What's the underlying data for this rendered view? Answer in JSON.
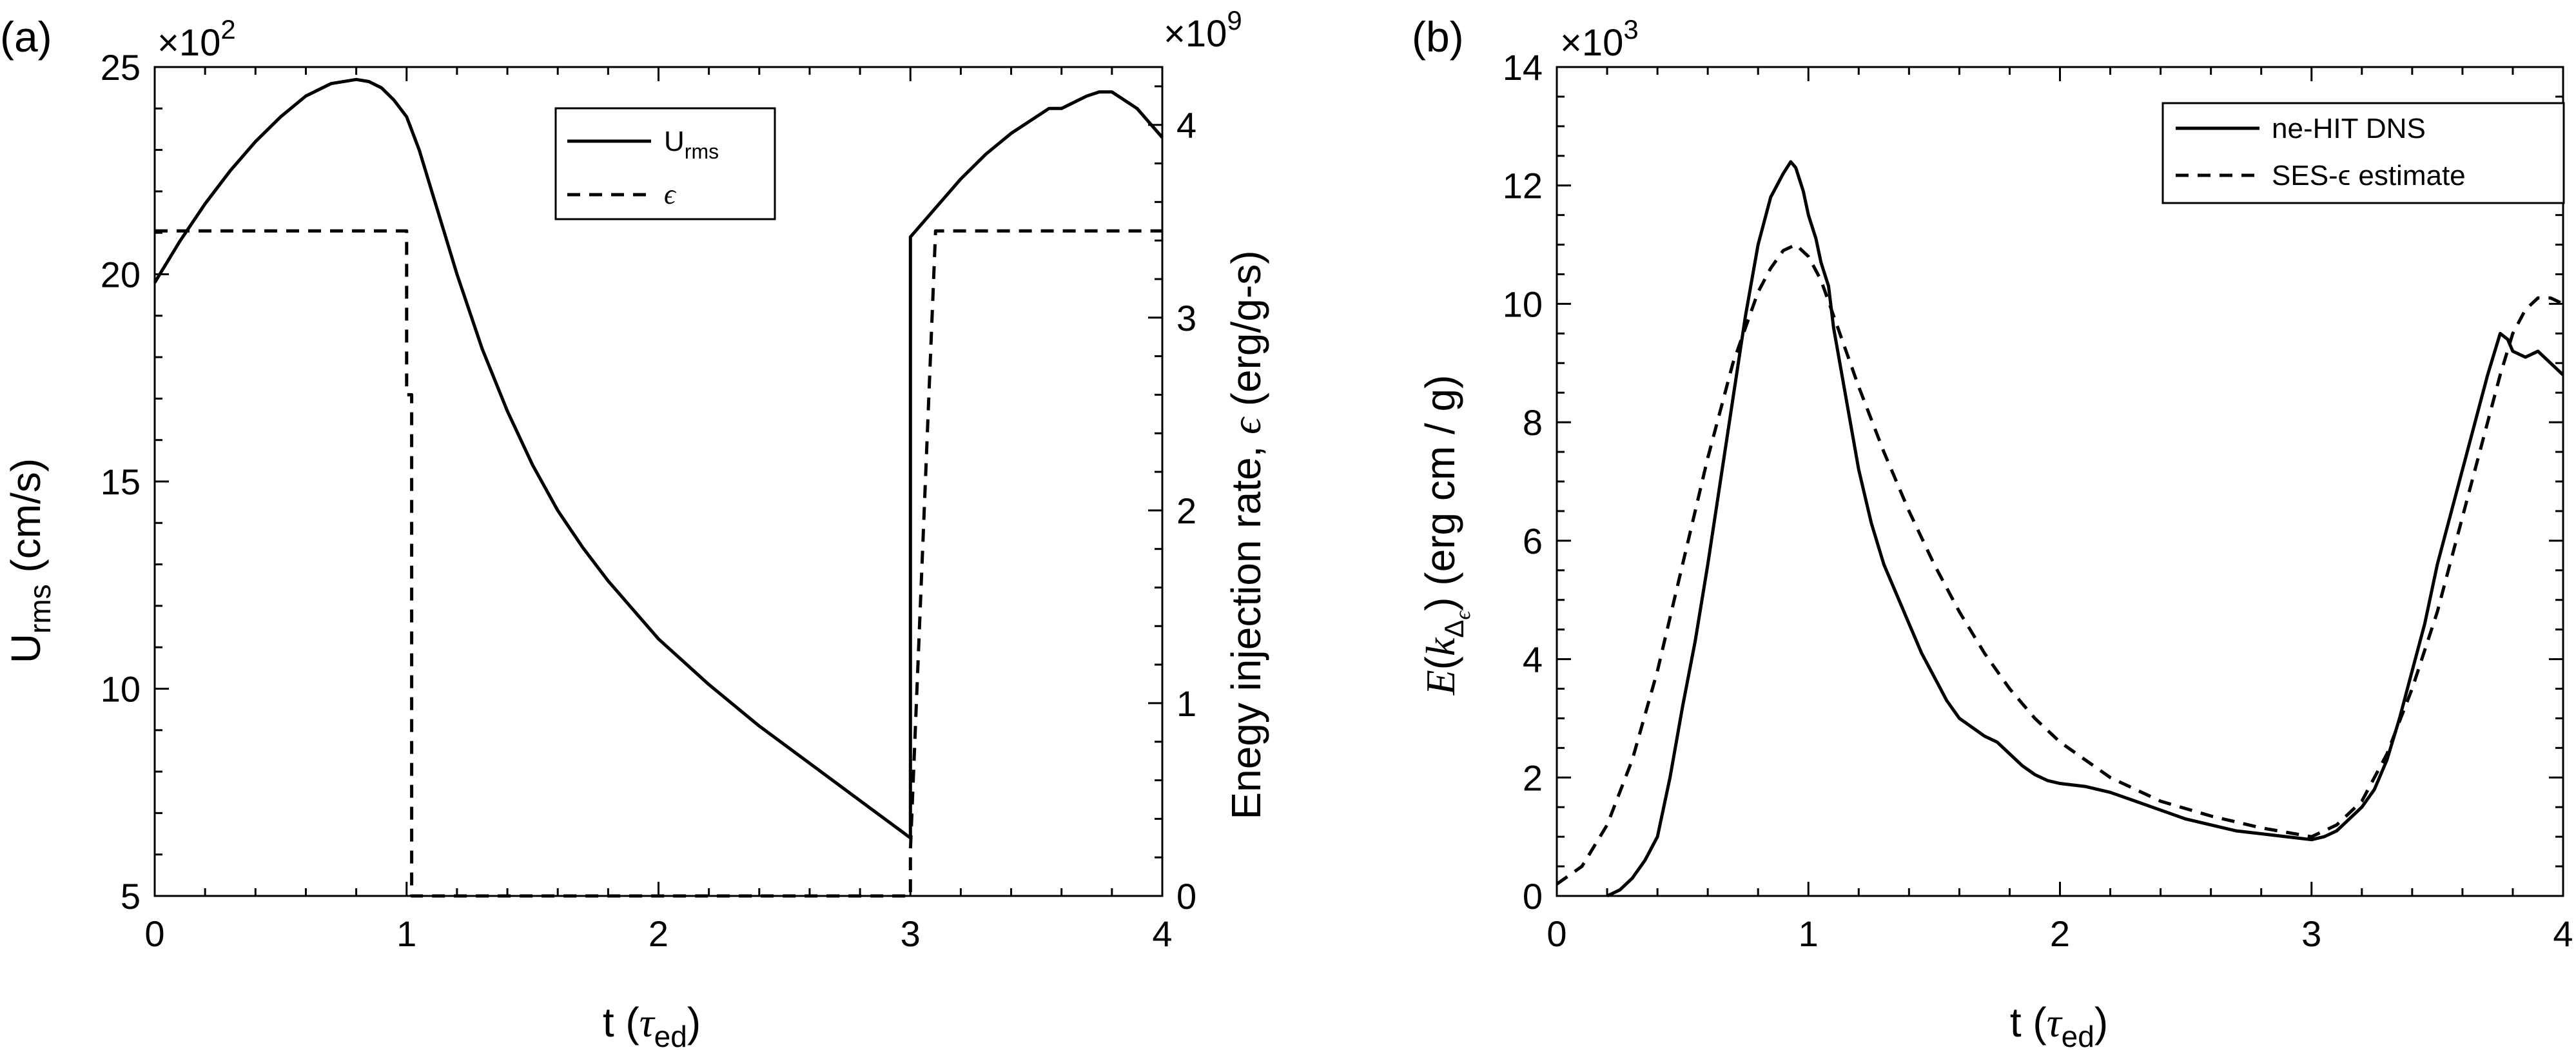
{
  "chart_data": [
    {
      "panel": "(a)",
      "type": "line",
      "xlabel": {
        "prefix": "t (",
        "symbol": "τ",
        "sub": "ed",
        "suffix": ")"
      },
      "ylabel_left": {
        "main": "U",
        "sub": "rms",
        "suffix": " (cm/s)"
      },
      "ylabel_right": {
        "prefix": "Enegy injection rate, ",
        "symbol": "ϵ",
        "suffix": " (erg/g-s)"
      },
      "left_multiplier": {
        "times": "×10",
        "exp": "2"
      },
      "right_multiplier": {
        "times": "×10",
        "exp": "9"
      },
      "xlim": [
        0,
        4
      ],
      "ylim_left": [
        5,
        25
      ],
      "ylim_right": [
        0,
        4.3
      ],
      "xticks": [
        0,
        1,
        2,
        3,
        4
      ],
      "yticks_left": [
        5,
        10,
        15,
        20,
        25
      ],
      "yticks_right": [
        0,
        1,
        2,
        3,
        4
      ],
      "legend_position": "top-center",
      "series": [
        {
          "name": "U",
          "name_sub": "rms",
          "style": "solid",
          "axis": "left",
          "x": [
            0,
            0.1,
            0.2,
            0.3,
            0.4,
            0.5,
            0.6,
            0.7,
            0.8,
            0.85,
            0.9,
            0.95,
            1.0,
            1.05,
            1.1,
            1.15,
            1.2,
            1.3,
            1.4,
            1.5,
            1.6,
            1.7,
            1.8,
            1.9,
            2.0,
            2.2,
            2.4,
            2.6,
            2.8,
            3.0,
            3.0,
            3.1,
            3.2,
            3.3,
            3.4,
            3.5,
            3.55,
            3.6,
            3.7,
            3.75,
            3.8,
            3.9,
            4.0
          ],
          "y": [
            19.8,
            20.8,
            21.7,
            22.5,
            23.2,
            23.8,
            24.3,
            24.6,
            24.7,
            24.65,
            24.5,
            24.2,
            23.8,
            23.0,
            22.0,
            21.0,
            20.0,
            18.2,
            16.7,
            15.4,
            14.3,
            13.4,
            12.6,
            11.9,
            11.2,
            10.1,
            9.1,
            8.2,
            7.3,
            6.4,
            20.9,
            21.6,
            22.3,
            22.9,
            23.4,
            23.8,
            24.0,
            24.0,
            24.3,
            24.4,
            24.4,
            24.0,
            23.3
          ]
        },
        {
          "name": "ϵ",
          "style": "dashed",
          "axis": "right",
          "x": [
            0,
            1.0,
            1.0,
            1.02,
            1.02,
            3.0,
            3.0,
            3.1,
            4.0
          ],
          "y": [
            3.45,
            3.45,
            2.6,
            2.6,
            0,
            0,
            0.24,
            3.45,
            3.45
          ]
        }
      ]
    },
    {
      "panel": "(b)",
      "type": "line",
      "xlabel": {
        "prefix": "t (",
        "symbol": "τ",
        "sub": "ed",
        "suffix": ")"
      },
      "ylabel": {
        "fn": "E",
        "open": "(",
        "k": "k",
        "ksub": "Δ",
        "ksubsub": "ϵ",
        "close": ")",
        "suffix": " (erg cm / g)"
      },
      "left_multiplier": {
        "times": "×10",
        "exp": "3"
      },
      "xlim": [
        0,
        4
      ],
      "ylim": [
        0,
        14
      ],
      "xticks": [
        0,
        1,
        2,
        3,
        4
      ],
      "yticks": [
        0,
        2,
        4,
        6,
        8,
        10,
        12,
        14
      ],
      "legend_position": "top-right",
      "series": [
        {
          "name": "ne-HIT DNS",
          "style": "solid",
          "x": [
            0.2,
            0.25,
            0.3,
            0.35,
            0.4,
            0.45,
            0.5,
            0.55,
            0.6,
            0.65,
            0.7,
            0.75,
            0.8,
            0.85,
            0.9,
            0.93,
            0.95,
            0.98,
            1.0,
            1.03,
            1.05,
            1.08,
            1.1,
            1.15,
            1.2,
            1.25,
            1.3,
            1.35,
            1.4,
            1.45,
            1.5,
            1.55,
            1.6,
            1.65,
            1.7,
            1.75,
            1.8,
            1.85,
            1.9,
            1.95,
            2.0,
            2.1,
            2.2,
            2.3,
            2.4,
            2.5,
            2.6,
            2.7,
            2.8,
            2.9,
            3.0,
            3.05,
            3.1,
            3.15,
            3.2,
            3.25,
            3.3,
            3.35,
            3.4,
            3.45,
            3.5,
            3.55,
            3.6,
            3.65,
            3.7,
            3.75,
            3.78,
            3.8,
            3.85,
            3.9,
            3.95,
            4.0
          ],
          "y": [
            0,
            0.1,
            0.3,
            0.6,
            1.0,
            2.0,
            3.2,
            4.3,
            5.6,
            7.0,
            8.4,
            9.8,
            11.0,
            11.8,
            12.2,
            12.4,
            12.3,
            11.9,
            11.5,
            11.1,
            10.7,
            10.3,
            9.6,
            8.4,
            7.2,
            6.3,
            5.6,
            5.1,
            4.6,
            4.1,
            3.7,
            3.3,
            3.0,
            2.85,
            2.7,
            2.6,
            2.4,
            2.2,
            2.05,
            1.95,
            1.9,
            1.85,
            1.75,
            1.6,
            1.45,
            1.3,
            1.2,
            1.1,
            1.05,
            1.0,
            0.95,
            1.0,
            1.1,
            1.3,
            1.5,
            1.8,
            2.3,
            3.0,
            3.8,
            4.6,
            5.6,
            6.4,
            7.2,
            8.0,
            8.8,
            9.5,
            9.4,
            9.2,
            9.1,
            9.2,
            9.0,
            8.8
          ]
        },
        {
          "name": "SES-ϵ estimate",
          "style": "dashed",
          "x": [
            0,
            0.1,
            0.2,
            0.3,
            0.4,
            0.5,
            0.6,
            0.7,
            0.8,
            0.85,
            0.9,
            0.95,
            1.0,
            1.05,
            1.1,
            1.2,
            1.3,
            1.4,
            1.5,
            1.6,
            1.7,
            1.8,
            1.9,
            2.0,
            2.2,
            2.4,
            2.6,
            2.8,
            3.0,
            3.1,
            3.2,
            3.3,
            3.4,
            3.5,
            3.6,
            3.7,
            3.75,
            3.8,
            3.85,
            3.9,
            3.95,
            4.0
          ],
          "y": [
            0.2,
            0.5,
            1.2,
            2.3,
            3.8,
            5.6,
            7.4,
            9.0,
            10.2,
            10.6,
            10.9,
            11.0,
            10.8,
            10.4,
            9.8,
            8.6,
            7.5,
            6.5,
            5.6,
            4.8,
            4.1,
            3.5,
            3.0,
            2.6,
            2.0,
            1.6,
            1.35,
            1.15,
            1.0,
            1.2,
            1.6,
            2.4,
            3.5,
            4.8,
            6.4,
            8.0,
            8.8,
            9.5,
            9.9,
            10.1,
            10.1,
            10.0
          ]
        }
      ]
    }
  ]
}
